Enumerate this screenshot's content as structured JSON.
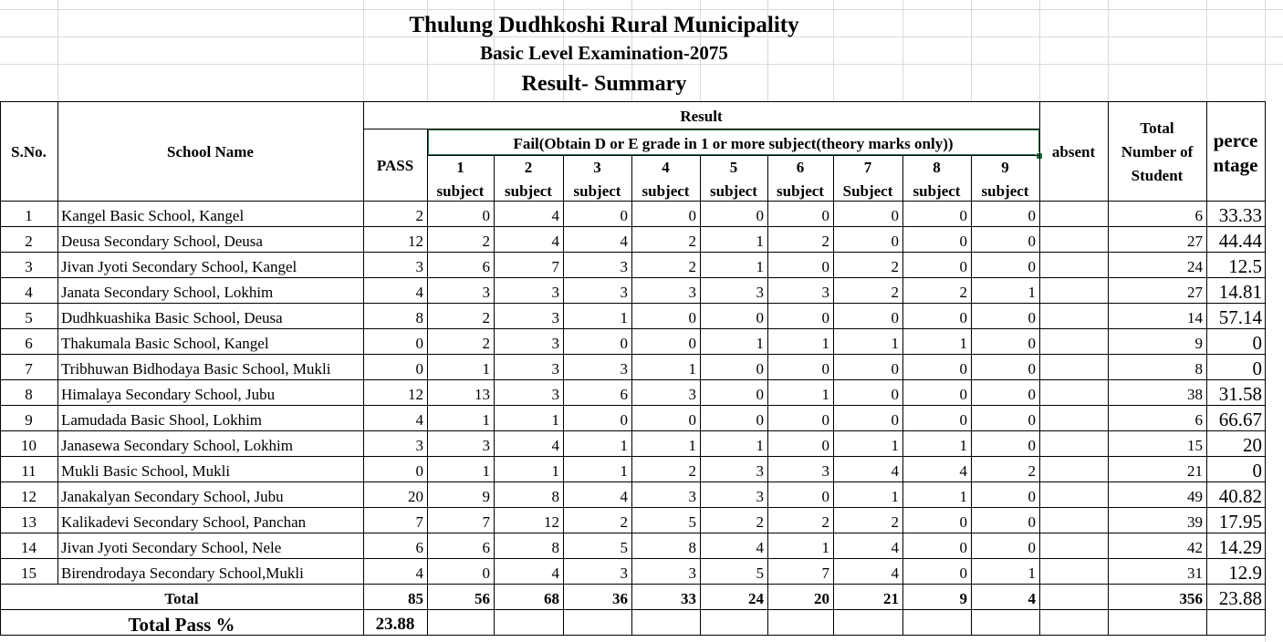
{
  "sheet": {
    "title1": "Thulung Dudhkoshi Rural Municipality",
    "title2": "Basic Level Examination-2075",
    "title3": "Result- Summary"
  },
  "headers": {
    "sno": "S.No.",
    "school": "School Name",
    "result": "Result",
    "pass": "PASS",
    "fail": "Fail(Obtain D or E grade in 1 or more subject(theory marks only))",
    "absent": "absent",
    "total_students": [
      "Total",
      "Number of",
      "Student"
    ],
    "percentage": [
      "perce",
      "ntage"
    ],
    "subjects": [
      {
        "n": "1",
        "label": "subject"
      },
      {
        "n": "2",
        "label": "subject"
      },
      {
        "n": "3",
        "label": "subject"
      },
      {
        "n": "4",
        "label": "subject"
      },
      {
        "n": "5",
        "label": "subject"
      },
      {
        "n": "6",
        "label": "subject"
      },
      {
        "n": "7",
        "label": "Subject"
      },
      {
        "n": "8",
        "label": "subject"
      },
      {
        "n": "9",
        "label": "subject"
      }
    ]
  },
  "rows": [
    {
      "sno": "1",
      "school": "Kangel Basic School, Kangel",
      "pass": "2",
      "f": [
        "0",
        "4",
        "0",
        "0",
        "0",
        "0",
        "0",
        "0",
        "0"
      ],
      "absent": "",
      "total": "6",
      "pct": "33.33"
    },
    {
      "sno": "2",
      "school": "Deusa Secondary School, Deusa",
      "pass": "12",
      "f": [
        "2",
        "4",
        "4",
        "2",
        "1",
        "2",
        "0",
        "0",
        "0"
      ],
      "absent": "",
      "total": "27",
      "pct": "44.44"
    },
    {
      "sno": "3",
      "school": "Jivan Jyoti Secondary School, Kangel",
      "pass": "3",
      "f": [
        "6",
        "7",
        "3",
        "2",
        "1",
        "0",
        "2",
        "0",
        "0"
      ],
      "absent": "",
      "total": "24",
      "pct": "12.5"
    },
    {
      "sno": "4",
      "school": "Janata Secondary School, Lokhim",
      "pass": "4",
      "f": [
        "3",
        "3",
        "3",
        "3",
        "3",
        "3",
        "2",
        "2",
        "1"
      ],
      "absent": "",
      "total": "27",
      "pct": "14.81"
    },
    {
      "sno": "5",
      "school": "Dudhkuashika Basic School, Deusa",
      "pass": "8",
      "f": [
        "2",
        "3",
        "1",
        "0",
        "0",
        "0",
        "0",
        "0",
        "0"
      ],
      "absent": "",
      "total": "14",
      "pct": "57.14"
    },
    {
      "sno": "6",
      "school": "Thakumala Basic School, Kangel",
      "pass": "0",
      "f": [
        "2",
        "3",
        "0",
        "0",
        "1",
        "1",
        "1",
        "1",
        "0"
      ],
      "absent": "",
      "total": "9",
      "pct": "0"
    },
    {
      "sno": "7",
      "school": "Tribhuwan Bidhodaya Basic School, Mukli",
      "pass": "0",
      "f": [
        "1",
        "3",
        "3",
        "1",
        "0",
        "0",
        "0",
        "0",
        "0"
      ],
      "absent": "",
      "total": "8",
      "pct": "0"
    },
    {
      "sno": "8",
      "school": "Himalaya Secondary School, Jubu",
      "pass": "12",
      "f": [
        "13",
        "3",
        "6",
        "3",
        "0",
        "1",
        "0",
        "0",
        "0"
      ],
      "absent": "",
      "total": "38",
      "pct": "31.58"
    },
    {
      "sno": "9",
      "school": "Lamudada Basic Shool, Lokhim",
      "pass": "4",
      "f": [
        "1",
        "1",
        "0",
        "0",
        "0",
        "0",
        "0",
        "0",
        "0"
      ],
      "absent": "",
      "total": "6",
      "pct": "66.67"
    },
    {
      "sno": "10",
      "school": "Janasewa Secondary School, Lokhim",
      "pass": "3",
      "f": [
        "3",
        "4",
        "1",
        "1",
        "1",
        "0",
        "1",
        "1",
        "0"
      ],
      "absent": "",
      "total": "15",
      "pct": "20"
    },
    {
      "sno": "11",
      "school": "Mukli Basic School, Mukli",
      "pass": "0",
      "f": [
        "1",
        "1",
        "1",
        "2",
        "3",
        "3",
        "4",
        "4",
        "2"
      ],
      "absent": "",
      "total": "21",
      "pct": "0"
    },
    {
      "sno": "12",
      "school": "Janakalyan Secondary School, Jubu",
      "pass": "20",
      "f": [
        "9",
        "8",
        "4",
        "3",
        "3",
        "0",
        "1",
        "1",
        "0"
      ],
      "absent": "",
      "total": "49",
      "pct": "40.82"
    },
    {
      "sno": "13",
      "school": "Kalikadevi Secondary School, Panchan",
      "pass": "7",
      "f": [
        "7",
        "12",
        "2",
        "5",
        "2",
        "2",
        "2",
        "0",
        "0"
      ],
      "absent": "",
      "total": "39",
      "pct": "17.95"
    },
    {
      "sno": "14",
      "school": "Jivan Jyoti Secondary School, Nele",
      "pass": "6",
      "f": [
        "6",
        "8",
        "5",
        "8",
        "4",
        "1",
        "4",
        "0",
        "0"
      ],
      "absent": "",
      "total": "42",
      "pct": "14.29"
    },
    {
      "sno": "15",
      "school": "Birendrodaya Secondary School,Mukli",
      "pass": "4",
      "f": [
        "0",
        "4",
        "3",
        "3",
        "5",
        "7",
        "4",
        "0",
        "1"
      ],
      "absent": "",
      "total": "31",
      "pct": "12.9"
    }
  ],
  "total_row": {
    "label": "Total",
    "pass": "85",
    "f": [
      "56",
      "68",
      "36",
      "33",
      "24",
      "20",
      "21",
      "9",
      "4"
    ],
    "absent": "",
    "total": "356",
    "pct": "23.88"
  },
  "pass_row": {
    "label": "Total Pass %",
    "value": "23.88"
  },
  "colors": {
    "selection": "#217346",
    "gridline": "#d9d9d9"
  }
}
